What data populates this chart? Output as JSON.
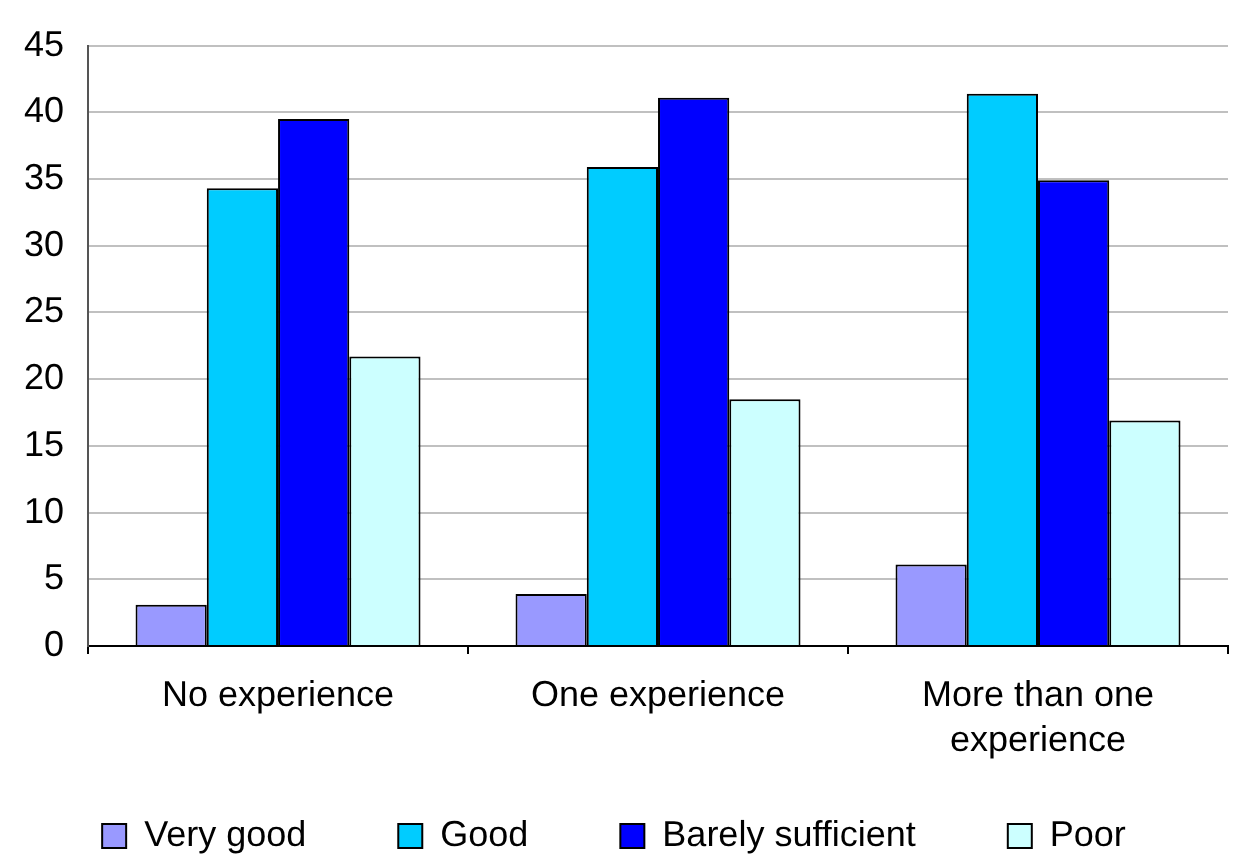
{
  "chart_data": {
    "type": "bar",
    "categories": [
      "No experience",
      "One experience",
      "More than one experience"
    ],
    "series": [
      {
        "name": "Very good",
        "color": "#9999ff",
        "values": [
          3.1,
          3.9,
          6.1
        ]
      },
      {
        "name": "Good",
        "color": "#00ccff",
        "values": [
          34.3,
          35.9,
          41.4
        ]
      },
      {
        "name": "Barely sufficient",
        "color": "#0000ff",
        "values": [
          39.5,
          41.1,
          34.9
        ]
      },
      {
        "name": "Poor",
        "color": "#ccffff",
        "values": [
          21.7,
          18.5,
          16.9
        ]
      }
    ],
    "ylim": [
      0,
      45
    ],
    "yticks": [
      0,
      5,
      10,
      15,
      20,
      25,
      30,
      35,
      40,
      45
    ],
    "grid": "y",
    "legend": "bottom"
  }
}
